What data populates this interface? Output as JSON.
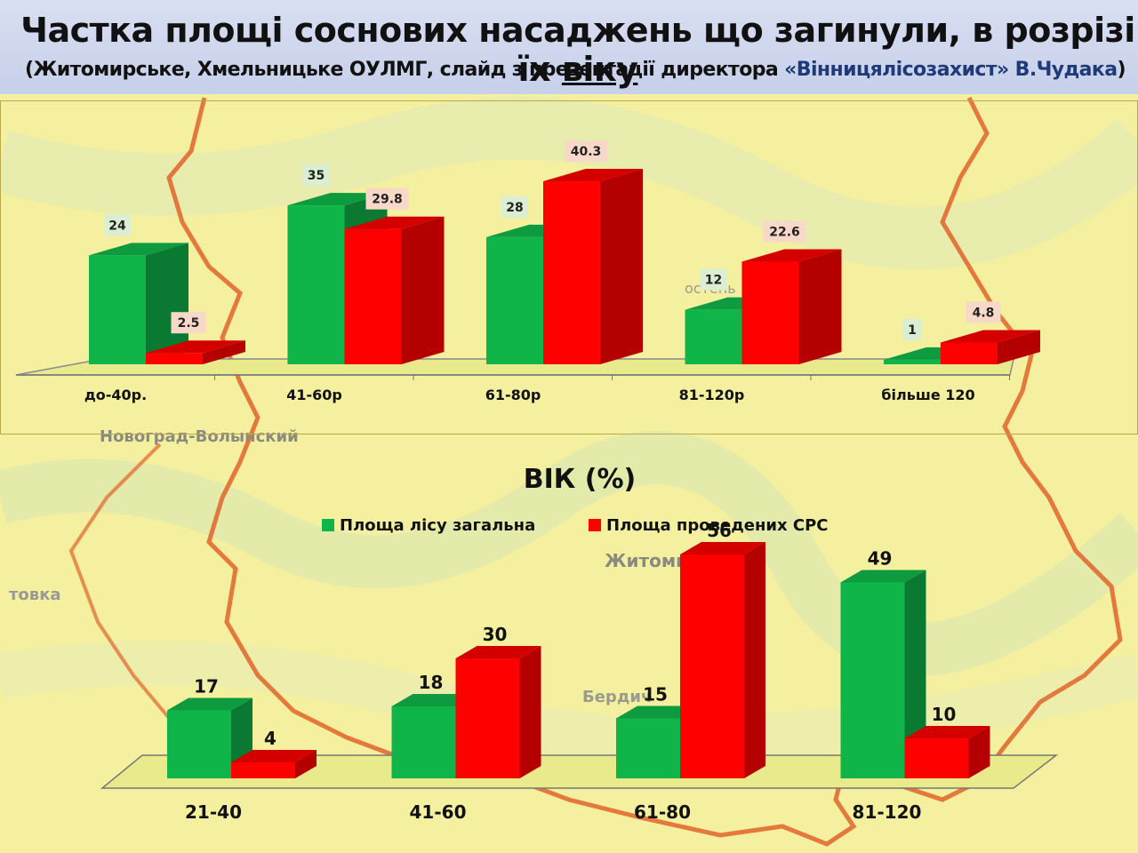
{
  "header": {
    "title_main": "Частка площі соснових насаджень що загинули,  в розрізі їх ",
    "title_underlined": "віку",
    "subtitle_start": "(Житомирське, Хмельницьке ОУЛМГ, слайд з презентації директора ",
    "subtitle_org": "«Вінницялісозахист»",
    "subtitle_name": "  В.Чудака",
    "subtitle_end": ")"
  },
  "map_labels": {
    "city1": "Новоград-Волынский",
    "city2": "Житомир",
    "city3": "Бердич",
    "city4": "товка",
    "city5": "остень"
  },
  "colors": {
    "green": "#10b54a",
    "green_dark": "#0a7a32",
    "red": "#ff0000",
    "red_dark": "#b40000",
    "border": "#e0642a"
  },
  "chart_data": [
    {
      "type": "bar",
      "title": "",
      "categories": [
        "до-40р.",
        "41-60р",
        "61-80р",
        "81-120р",
        "більше 120"
      ],
      "series": [
        {
          "name": "",
          "values": [
            24,
            35,
            28,
            12,
            1
          ]
        },
        {
          "name": "",
          "values": [
            2.5,
            29.8,
            40.3,
            22.6,
            4.8
          ]
        }
      ],
      "value_labels": [
        [
          "24",
          "35",
          "28",
          "12",
          "1"
        ],
        [
          "2.5",
          "29.8",
          "40.3",
          "22.6",
          "4.8"
        ]
      ],
      "ylim": [
        0,
        45
      ],
      "style": "3d"
    },
    {
      "type": "bar",
      "title": "ВІК (%)",
      "categories": [
        "21-40",
        "41-60",
        "61-80",
        "81-120"
      ],
      "series": [
        {
          "name": "Площа лісу загальна",
          "values": [
            17,
            18,
            15,
            49
          ]
        },
        {
          "name": "Площа проведених СРС",
          "values": [
            4,
            30,
            56,
            10
          ]
        }
      ],
      "ylim": [
        0,
        60
      ],
      "legend": "top",
      "style": "3d"
    }
  ]
}
